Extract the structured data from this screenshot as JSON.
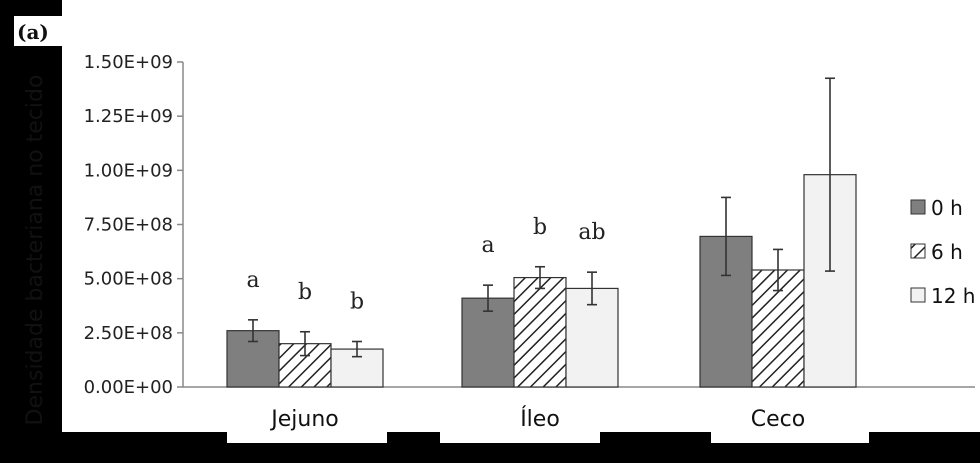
{
  "chart_data": {
    "type": "bar",
    "panel_label": "(a)",
    "ylabel": "Densidade bacteriana no tecido",
    "categories": [
      "Jejuno",
      "Íleo",
      "Ceco"
    ],
    "yticks": [
      "0.00E+00",
      "2.50E+08",
      "5.00E+08",
      "7.50E+08",
      "1.00E+09",
      "1.25E+09",
      "1.50E+09"
    ],
    "ylim": [
      0,
      1500000000
    ],
    "grid": false,
    "legend_position": "right",
    "series": [
      {
        "name": "0 h",
        "pattern": "solid-gray",
        "values": [
          260000000,
          410000000,
          695000000
        ],
        "errors": [
          50000000,
          60000000,
          180000000
        ]
      },
      {
        "name": "6 h",
        "pattern": "hatched",
        "values": [
          200000000,
          505000000,
          540000000
        ],
        "errors": [
          55000000,
          50000000,
          95000000
        ]
      },
      {
        "name": "12 h",
        "pattern": "solid-white",
        "values": [
          175000000,
          455000000,
          980000000
        ],
        "errors": [
          35000000,
          75000000,
          445000000
        ]
      }
    ],
    "annotations": [
      [
        "a",
        "b",
        "b"
      ],
      [
        "a",
        "b",
        "ab"
      ],
      [
        "",
        "",
        ""
      ]
    ]
  },
  "colors": {
    "bar0": "#7f7f7f",
    "bar2": "#f2f2f2",
    "axis": "#888888",
    "edge": "#333333"
  }
}
